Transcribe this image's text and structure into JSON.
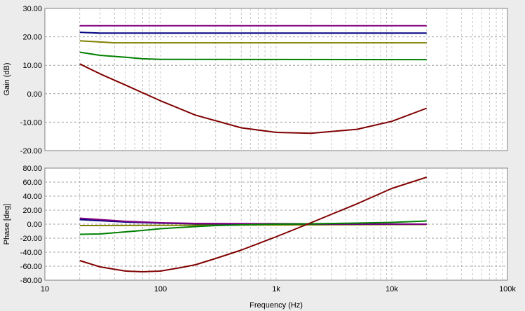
{
  "chart_data": [
    {
      "type": "line",
      "panel": "gain",
      "xscale": "log",
      "xlim": [
        10,
        100000
      ],
      "ylim": [
        -20,
        30
      ],
      "ylabel": "Gain (dB)",
      "xlabel": "",
      "grid": true,
      "yticks": [
        "30.00",
        "20.00",
        "10.00",
        "0.00",
        "-10.00",
        "-20.00"
      ],
      "series": [
        {
          "color": "#800080",
          "x": [
            20,
            20000
          ],
          "y": [
            23.9,
            23.9
          ]
        },
        {
          "color": "#000080",
          "x": [
            20,
            30,
            20000
          ],
          "y": [
            21.6,
            21.3,
            21.3
          ]
        },
        {
          "color": "#808000",
          "x": [
            20,
            40,
            20000
          ],
          "y": [
            18.6,
            17.9,
            17.9
          ]
        },
        {
          "color": "#008000",
          "x": [
            20,
            30,
            50,
            70,
            100,
            20000
          ],
          "y": [
            14.6,
            13.5,
            12.8,
            12.3,
            12.1,
            12.0
          ]
        },
        {
          "color": "#800000",
          "x": [
            20,
            30,
            50,
            100,
            200,
            500,
            1000,
            2000,
            5000,
            10000,
            20000
          ],
          "y": [
            10.5,
            7.0,
            3.0,
            -2.5,
            -7.5,
            -12.0,
            -13.6,
            -13.9,
            -12.5,
            -9.7,
            -5.1
          ]
        }
      ]
    },
    {
      "type": "line",
      "panel": "phase",
      "xscale": "log",
      "xlim": [
        10,
        100000
      ],
      "ylim": [
        -80,
        80
      ],
      "ylabel": "Phase [deg]",
      "xlabel": "Frequency (Hz)",
      "grid": true,
      "yticks": [
        "80.00",
        "60.00",
        "40.00",
        "20.00",
        "0.00",
        "-20.00",
        "-40.00",
        "-60.00",
        "-80.00"
      ],
      "xticks": [
        "10",
        "100",
        "1k",
        "10k",
        "100k"
      ],
      "series": [
        {
          "color": "#808000",
          "x": [
            20,
            20000
          ],
          "y": [
            -2,
            -0.5
          ]
        },
        {
          "color": "#000080",
          "x": [
            20,
            50,
            100,
            200,
            20000
          ],
          "y": [
            6.5,
            3,
            1.5,
            0.5,
            0
          ]
        },
        {
          "color": "#800080",
          "x": [
            20,
            50,
            100,
            200,
            20000
          ],
          "y": [
            8.5,
            4,
            2,
            1,
            0
          ]
        },
        {
          "color": "#008000",
          "x": [
            20,
            30,
            50,
            70,
            100,
            200,
            300,
            500,
            1000,
            2000,
            5000,
            10000,
            20000
          ],
          "y": [
            -14.5,
            -14,
            -11,
            -9,
            -6.5,
            -3.5,
            -2,
            -1,
            0,
            0.5,
            1.5,
            2.5,
            4.5
          ]
        },
        {
          "color": "#800000",
          "x": [
            20,
            30,
            50,
            70,
            100,
            150,
            200,
            300,
            500,
            1000,
            2000,
            3000,
            5000,
            10000,
            20000
          ],
          "y": [
            -52,
            -61,
            -67,
            -68,
            -67,
            -62,
            -58,
            -49,
            -37,
            -18,
            2,
            14,
            29,
            51,
            67
          ]
        }
      ]
    }
  ]
}
